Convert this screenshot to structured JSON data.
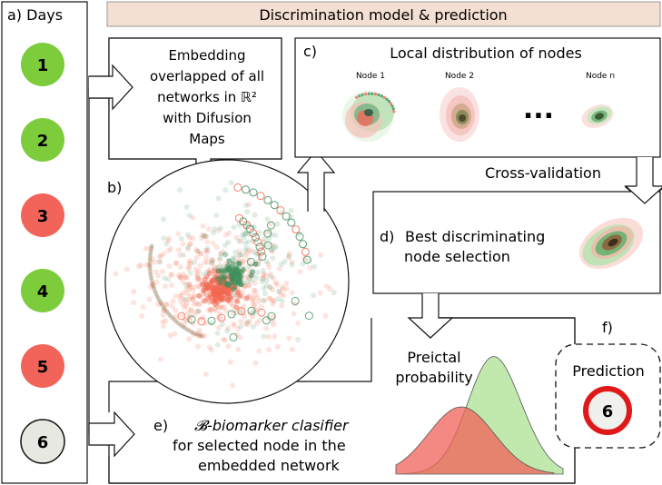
{
  "header": {
    "title": "Discrimination model & prediction"
  },
  "days": {
    "label": "a) Days",
    "items": [
      {
        "value": "1",
        "class": "interictal"
      },
      {
        "value": "2",
        "class": "interictal"
      },
      {
        "value": "3",
        "class": "preictal"
      },
      {
        "value": "4",
        "class": "interictal"
      },
      {
        "value": "5",
        "class": "preictal"
      },
      {
        "value": "6",
        "class": "unknown"
      }
    ]
  },
  "embedding": {
    "lines": [
      "Embedding",
      "overlapped of all",
      "networks in ℝ²",
      "with Difusion",
      "Maps"
    ]
  },
  "panel_b": {
    "label": "b)"
  },
  "panel_c": {
    "label": "c)",
    "title": "Local distribution of nodes",
    "nodes": [
      "Node 1",
      "Node 2",
      "Node  n"
    ],
    "ellipsis": "..."
  },
  "cross_validation": "Cross-validation",
  "panel_d": {
    "label": "d)",
    "lines": [
      "Best discriminating",
      "node selection"
    ]
  },
  "preictal_probability": {
    "lines": [
      "Preictal",
      "probability"
    ]
  },
  "panel_e": {
    "label": "e)",
    "lines": [
      "𝓑-biomarker clasifier",
      "for selected node in the",
      "embedded network"
    ]
  },
  "panel_f": {
    "label": "f)",
    "title": "Prediction",
    "value": "6"
  },
  "colors": {
    "green": "#7ccc3c",
    "red": "#f2645a",
    "grey": "#e8e8e2",
    "header_bg": "#f4e0d2",
    "dark_green": "#2e6e46",
    "scatter_red": "#f26850",
    "scatter_green": "#3f8f5c"
  }
}
